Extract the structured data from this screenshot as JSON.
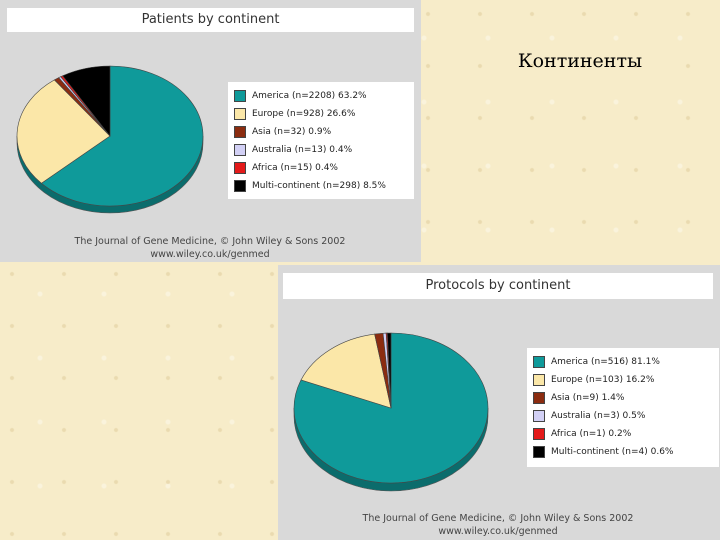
{
  "slide": {
    "title": "Континенты"
  },
  "chart_data": [
    {
      "type": "pie",
      "title": "Patients by continent",
      "legend_position": "right",
      "slices": [
        {
          "label": "America (n=2208) 63.2%",
          "value": 63.2,
          "color": "#0f9a9a"
        },
        {
          "label": "Europe (n=928) 26.6%",
          "value": 26.6,
          "color": "#fbe7a8"
        },
        {
          "label": "Asia (n=32) 0.9%",
          "value": 0.9,
          "color": "#8b2c10"
        },
        {
          "label": "Australia (n=13) 0.4%",
          "value": 0.4,
          "color": "#d2d0f5"
        },
        {
          "label": "Africa (n=15) 0.4%",
          "value": 0.4,
          "color": "#e41a1a"
        },
        {
          "label": "Multi-continent (n=298) 8.5%",
          "value": 8.5,
          "color": "#000000"
        }
      ],
      "credit_line1": "The Journal of Gene Medicine, © John Wiley & Sons 2002",
      "credit_line2": "www.wiley.co.uk/genmed"
    },
    {
      "type": "pie",
      "title": "Protocols by continent",
      "legend_position": "right",
      "slices": [
        {
          "label": "America (n=516) 81.1%",
          "value": 81.1,
          "color": "#0f9a9a"
        },
        {
          "label": "Europe (n=103) 16.2%",
          "value": 16.2,
          "color": "#fbe7a8"
        },
        {
          "label": "Asia (n=9) 1.4%",
          "value": 1.4,
          "color": "#8b2c10"
        },
        {
          "label": "Australia (n=3) 0.5%",
          "value": 0.5,
          "color": "#d2d0f5"
        },
        {
          "label": "Africa (n=1) 0.2%",
          "value": 0.2,
          "color": "#e41a1a"
        },
        {
          "label": "Multi-continent (n=4) 0.6%",
          "value": 0.6,
          "color": "#000000"
        }
      ],
      "credit_line1": "The Journal of Gene Medicine, © John Wiley & Sons 2002",
      "credit_line2": "www.wiley.co.uk/genmed"
    }
  ]
}
